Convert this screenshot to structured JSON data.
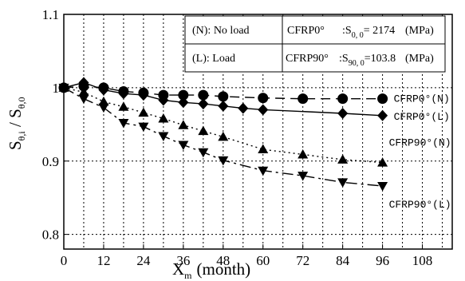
{
  "chart_data": {
    "type": "line",
    "xlabel": "X",
    "xlabel_sub": "m",
    "xlabel_unit": "(month)",
    "ylabel": "S",
    "ylabel_sub1": "θ,i",
    "ylabel_mid": " / S",
    "ylabel_sub2": "θ,0",
    "xlim": [
      0,
      117
    ],
    "ylim": [
      0.78,
      1.1
    ],
    "xticks": [
      0,
      12,
      24,
      36,
      48,
      60,
      72,
      84,
      96,
      108
    ],
    "yticks": [
      0.8,
      0.9,
      1,
      1.1
    ],
    "ytick_labels": [
      "0.8",
      "0.9",
      "1",
      "1.1"
    ],
    "grid": true,
    "legend": {
      "placement": "top-right",
      "rows": [
        {
          "key": "(N): No load",
          "material": "CFRP0°",
          "formula_prefix": ":S",
          "formula_sub": "0, 0",
          "formula_value": "= 2174",
          "unit": "(MPa)"
        },
        {
          "key": "(L): Load",
          "material": "CFRP90°",
          "formula_prefix": ":S",
          "formula_sub": "90, 0",
          "formula_value": "=103.8",
          "unit": "(MPa)"
        }
      ]
    },
    "series": [
      {
        "name": "CFRP0°(N)",
        "marker": "circle",
        "line": "dash",
        "x": [
          0,
          6,
          12,
          18,
          24,
          30,
          36,
          42,
          48,
          60,
          72,
          84,
          96
        ],
        "y": [
          1.0,
          1.002,
          1.0,
          0.995,
          0.993,
          0.99,
          0.99,
          0.99,
          0.988,
          0.986,
          0.985,
          0.985,
          0.985
        ]
      },
      {
        "name": "CFRP0°(L)",
        "marker": "diamond",
        "line": "solid",
        "x": [
          0,
          6,
          12,
          18,
          24,
          30,
          36,
          42,
          48,
          54,
          60,
          84,
          96
        ],
        "y": [
          1.0,
          1.007,
          0.997,
          0.992,
          0.99,
          0.983,
          0.98,
          0.978,
          0.975,
          0.972,
          0.97,
          0.965,
          0.962
        ]
      },
      {
        "name": "CFRP90°(N)",
        "marker": "triangle-up",
        "line": "dot",
        "x": [
          0,
          6,
          12,
          18,
          24,
          30,
          36,
          42,
          48,
          60,
          72,
          84,
          96
        ],
        "y": [
          1.0,
          0.994,
          0.981,
          0.974,
          0.966,
          0.958,
          0.949,
          0.941,
          0.933,
          0.916,
          0.909,
          0.902,
          0.898
        ]
      },
      {
        "name": "CFRP90°(L)",
        "marker": "triangle-down",
        "line": "dashdot",
        "x": [
          0,
          6,
          12,
          18,
          24,
          30,
          36,
          42,
          48,
          60,
          72,
          84,
          96
        ],
        "y": [
          1.0,
          0.985,
          0.973,
          0.952,
          0.947,
          0.934,
          0.922,
          0.912,
          0.901,
          0.887,
          0.88,
          0.871,
          0.866
        ]
      }
    ]
  }
}
